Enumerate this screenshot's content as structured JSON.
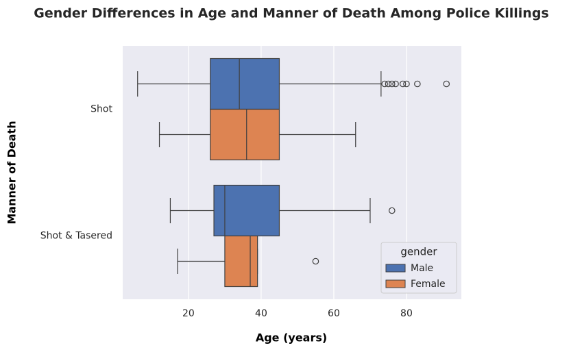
{
  "chart_data": {
    "type": "box",
    "title": "Gender Differences in Age and Manner of Death Among Police Killings",
    "x_label": "Age (years)",
    "y_label": "Manner of Death",
    "categories": [
      "Shot",
      "Shot & Tasered"
    ],
    "xlim": [
      1.9,
      95.1
    ],
    "xticks": [
      20,
      40,
      60,
      80
    ],
    "grid": true,
    "legend_title": "gender",
    "legend_position": "lower right",
    "series": [
      {
        "name": "Male",
        "color": "#4c72b0",
        "boxes": [
          {
            "whislo": 6,
            "q1": 26,
            "med": 34,
            "q3": 45,
            "whishi": 73,
            "fliers": [
              74,
              75,
              76,
              77,
              79,
              80,
              83,
              91
            ]
          },
          {
            "whislo": 15,
            "q1": 27,
            "med": 30,
            "q3": 45,
            "whishi": 70,
            "fliers": [
              76
            ]
          }
        ]
      },
      {
        "name": "Female",
        "color": "#dd8452",
        "boxes": [
          {
            "whislo": 12,
            "q1": 26,
            "med": 36,
            "q3": 45,
            "whishi": 66,
            "fliers": []
          },
          {
            "whislo": 17,
            "q1": 30,
            "med": 37,
            "q3": 39,
            "whishi": 39,
            "fliers": [
              55
            ]
          }
        ]
      }
    ]
  }
}
